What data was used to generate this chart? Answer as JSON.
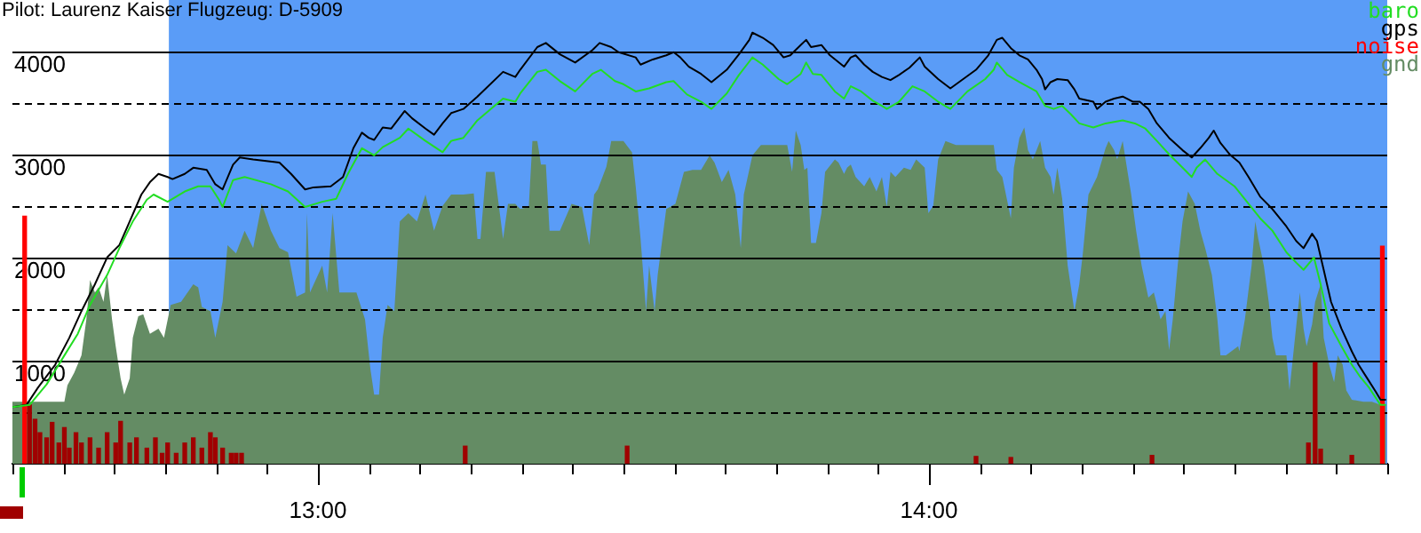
{
  "chart_data": {
    "type": "line",
    "title": "Pilot: Laurenz Kaiser Flugzeug: D-5909",
    "xlim": [
      12.5,
      14.75
    ],
    "xticks": [
      {
        "value": 12.5,
        "label": null
      },
      {
        "value": 12.583,
        "label": null
      },
      {
        "value": 12.667,
        "label": null
      },
      {
        "value": 12.75,
        "label": null
      },
      {
        "value": 12.833,
        "label": null
      },
      {
        "value": 12.917,
        "label": null
      },
      {
        "value": 13,
        "label": "13:00"
      },
      {
        "value": 13.083,
        "label": null
      },
      {
        "value": 13.167,
        "label": null
      },
      {
        "value": 13.25,
        "label": null
      },
      {
        "value": 13.333,
        "label": null
      },
      {
        "value": 13.417,
        "label": null
      },
      {
        "value": 13.5,
        "label": null
      },
      {
        "value": 13.583,
        "label": null
      },
      {
        "value": 13.667,
        "label": null
      },
      {
        "value": 13.75,
        "label": null
      },
      {
        "value": 13.833,
        "label": null
      },
      {
        "value": 13.917,
        "label": null
      },
      {
        "value": 14,
        "label": "14:00"
      },
      {
        "value": 14.083,
        "label": null
      },
      {
        "value": 14.167,
        "label": null
      },
      {
        "value": 14.25,
        "label": null
      },
      {
        "value": 14.333,
        "label": null
      },
      {
        "value": 14.417,
        "label": null
      },
      {
        "value": 14.5,
        "label": null
      },
      {
        "value": 14.583,
        "label": null
      },
      {
        "value": 14.667,
        "label": null
      },
      {
        "value": 14.75,
        "label": null
      }
    ],
    "ylim": [
      0,
      4500
    ],
    "yticks": [
      {
        "value": 500,
        "label": null
      },
      1000,
      {
        "value": 1500,
        "label": null
      },
      2000,
      {
        "value": 2500,
        "label": null
      },
      3000,
      {
        "value": 3500,
        "label": null
      },
      4000
    ],
    "grid": "y",
    "legend": "top right",
    "marker": "none",
    "bands": [
      {
        "axis": "x",
        "from": 12.756,
        "to": 14.75,
        "color": "#5a9cf7"
      }
    ],
    "series": [
      {
        "name": "baro",
        "color": "#22dd22",
        "x": [
          12.5,
          12.528,
          12.556,
          12.585,
          12.607,
          12.627,
          12.655,
          12.675,
          12.697,
          12.72,
          12.731,
          12.754,
          12.782,
          12.804,
          12.824,
          12.838,
          12.844,
          12.861,
          12.88,
          12.923,
          12.951,
          12.979,
          13.007,
          13.03,
          13.049,
          13.072,
          13.092,
          13.106,
          13.134,
          13.148,
          13.176,
          13.204,
          13.218,
          13.238,
          13.261,
          13.303,
          13.323,
          13.331,
          13.359,
          13.373,
          13.396,
          13.421,
          13.449,
          13.463,
          13.486,
          13.5,
          13.52,
          13.542,
          13.57,
          13.582,
          13.604,
          13.627,
          13.644,
          13.669,
          13.689,
          13.706,
          13.711,
          13.728,
          13.754,
          13.768,
          13.79,
          13.799,
          13.81,
          13.824,
          13.846,
          13.861,
          13.872,
          13.889,
          13.908,
          13.923,
          13.931,
          13.951,
          13.973,
          13.993,
          14.015,
          14.035,
          14.063,
          14.092,
          14.106,
          14.111,
          14.128,
          14.148,
          14.176,
          14.19,
          14.204,
          14.218,
          14.232,
          14.246,
          14.269,
          14.289,
          14.317,
          14.337,
          14.354,
          14.373,
          14.393,
          14.415,
          14.43,
          14.438,
          14.452,
          14.472,
          14.5,
          14.523,
          14.542,
          14.562,
          14.585,
          14.601,
          14.613,
          14.63,
          14.641,
          14.655,
          14.675,
          14.692,
          14.706,
          14.72,
          14.739,
          14.748
        ],
        "values": [
          550,
          570,
          770,
          1050,
          1260,
          1540,
          1830,
          2090,
          2350,
          2560,
          2610,
          2540,
          2640,
          2690,
          2690,
          2560,
          2490,
          2750,
          2780,
          2710,
          2640,
          2490,
          2540,
          2570,
          2810,
          3060,
          2990,
          3070,
          3160,
          3250,
          3130,
          3020,
          3130,
          3160,
          3330,
          3540,
          3510,
          3590,
          3800,
          3820,
          3710,
          3610,
          3780,
          3820,
          3710,
          3680,
          3610,
          3640,
          3700,
          3710,
          3580,
          3510,
          3440,
          3590,
          3770,
          3900,
          3940,
          3870,
          3730,
          3680,
          3780,
          3890,
          3780,
          3770,
          3610,
          3540,
          3660,
          3610,
          3520,
          3470,
          3440,
          3510,
          3660,
          3610,
          3510,
          3440,
          3610,
          3730,
          3820,
          3890,
          3770,
          3700,
          3610,
          3470,
          3440,
          3470,
          3390,
          3300,
          3260,
          3300,
          3330,
          3300,
          3250,
          3130,
          3000,
          2870,
          2780,
          2870,
          2950,
          2810,
          2690,
          2520,
          2380,
          2260,
          2050,
          1950,
          1880,
          2000,
          1740,
          1360,
          1140,
          960,
          840,
          740,
          570,
          570
        ]
      },
      {
        "name": "gps",
        "color": "#000000",
        "x": [
          12.5,
          12.523,
          12.542,
          12.57,
          12.593,
          12.613,
          12.635,
          12.655,
          12.675,
          12.692,
          12.711,
          12.725,
          12.739,
          12.754,
          12.762,
          12.782,
          12.796,
          12.818,
          12.832,
          12.844,
          12.861,
          12.872,
          12.894,
          12.937,
          12.956,
          12.979,
          12.993,
          13.021,
          13.041,
          13.058,
          13.072,
          13.083,
          13.092,
          13.106,
          13.12,
          13.142,
          13.154,
          13.176,
          13.19,
          13.204,
          13.218,
          13.238,
          13.261,
          13.303,
          13.323,
          13.331,
          13.359,
          13.373,
          13.396,
          13.421,
          13.449,
          13.461,
          13.48,
          13.492,
          13.52,
          13.528,
          13.548,
          13.57,
          13.582,
          13.593,
          13.607,
          13.627,
          13.644,
          13.669,
          13.689,
          13.706,
          13.711,
          13.728,
          13.745,
          13.762,
          13.773,
          13.79,
          13.799,
          13.807,
          13.824,
          13.838,
          13.861,
          13.872,
          13.88,
          13.894,
          13.908,
          13.923,
          13.937,
          13.951,
          13.968,
          13.985,
          13.993,
          14.015,
          14.035,
          14.049,
          14.077,
          14.097,
          14.111,
          14.12,
          14.134,
          14.148,
          14.162,
          14.176,
          14.185,
          14.19,
          14.199,
          14.21,
          14.227,
          14.238,
          14.246,
          14.269,
          14.275,
          14.289,
          14.303,
          14.317,
          14.334,
          14.345,
          14.359,
          14.373,
          14.393,
          14.415,
          14.43,
          14.444,
          14.458,
          14.466,
          14.477,
          14.492,
          14.508,
          14.523,
          14.542,
          14.562,
          14.585,
          14.601,
          14.613,
          14.627,
          14.635,
          14.646,
          14.658,
          14.675,
          14.692,
          14.703,
          14.717,
          14.731,
          14.739,
          14.748
        ],
        "values": [
          550,
          570,
          740,
          960,
          1220,
          1480,
          1740,
          2000,
          2120,
          2350,
          2610,
          2730,
          2810,
          2780,
          2760,
          2810,
          2870,
          2850,
          2710,
          2660,
          2900,
          2970,
          2950,
          2920,
          2810,
          2660,
          2680,
          2690,
          2780,
          3060,
          3210,
          3160,
          3140,
          3260,
          3250,
          3420,
          3350,
          3250,
          3190,
          3300,
          3400,
          3440,
          3560,
          3800,
          3750,
          3820,
          4040,
          4080,
          3970,
          3890,
          4010,
          4080,
          4040,
          3990,
          3940,
          3870,
          3920,
          3960,
          3990,
          3940,
          3850,
          3780,
          3700,
          3820,
          3970,
          4110,
          4180,
          4130,
          4060,
          3940,
          3960,
          4060,
          4110,
          4040,
          4060,
          3960,
          3850,
          3940,
          3960,
          3870,
          3800,
          3750,
          3720,
          3770,
          3840,
          3940,
          3850,
          3730,
          3640,
          3700,
          3820,
          3960,
          4110,
          4130,
          4030,
          3960,
          3920,
          3820,
          3730,
          3630,
          3700,
          3730,
          3720,
          3630,
          3540,
          3510,
          3440,
          3510,
          3540,
          3560,
          3510,
          3510,
          3440,
          3300,
          3160,
          3040,
          2970,
          3060,
          3160,
          3230,
          3110,
          3000,
          2920,
          2780,
          2590,
          2470,
          2300,
          2160,
          2090,
          2230,
          2160,
          1880,
          1570,
          1310,
          1090,
          960,
          830,
          700,
          620,
          620
        ]
      },
      {
        "name": "noise",
        "type": "bar",
        "color": "#ff0000",
        "colors": [
          "#ff0000",
          "#a00000",
          "#a00000",
          "#a00000",
          "#a00000",
          "#a00000",
          "#a00000",
          "#a00000",
          "#a00000",
          "#a00000",
          "#a00000",
          "#a00000",
          "#a00000",
          "#a00000",
          "#a00000",
          "#a00000",
          "#a00000",
          "#a00000",
          "#a00000",
          "#a00000",
          "#a00000",
          "#a00000",
          "#a00000",
          "#a00000",
          "#a00000",
          "#a00000",
          "#a00000",
          "#a00000",
          "#a00000",
          "#a00000",
          "#a00000",
          "#a00000",
          "#a00000",
          "#a00000",
          "#a00000",
          "#a00000",
          "#a00000",
          "#a00000",
          "#a00000",
          "#a00000",
          "#a00000",
          "#ff0000"
        ],
        "x": [
          12.52,
          12.528,
          12.537,
          12.545,
          12.556,
          12.565,
          12.576,
          12.585,
          12.593,
          12.604,
          12.613,
          12.627,
          12.641,
          12.655,
          12.669,
          12.677,
          12.692,
          12.703,
          12.72,
          12.734,
          12.745,
          12.754,
          12.768,
          12.782,
          12.796,
          12.81,
          12.824,
          12.832,
          12.844,
          12.858,
          12.866,
          12.875,
          13.241,
          13.506,
          14.077,
          14.134,
          14.365,
          14.621,
          14.632,
          14.641,
          14.692,
          14.742
        ],
        "values": [
          2400,
          570,
          430,
          300,
          250,
          400,
          200,
          350,
          150,
          300,
          200,
          250,
          150,
          300,
          200,
          410,
          200,
          250,
          150,
          250,
          100,
          200,
          100,
          200,
          250,
          150,
          300,
          250,
          150,
          100,
          100,
          100,
          170,
          170,
          70,
          60,
          80,
          200,
          980,
          140,
          80,
          2110
        ]
      },
      {
        "name": "gnd",
        "type": "area",
        "color": "#648c64",
        "x": [
          12.5,
          12.585,
          12.59,
          12.601,
          12.613,
          12.621,
          12.627,
          12.635,
          12.641,
          12.649,
          12.655,
          12.663,
          12.669,
          12.677,
          12.683,
          12.692,
          12.697,
          12.706,
          12.714,
          12.725,
          12.739,
          12.748,
          12.759,
          12.776,
          12.796,
          12.804,
          12.81,
          12.824,
          12.832,
          12.844,
          12.852,
          12.866,
          12.88,
          12.894,
          12.908,
          12.923,
          12.937,
          12.951,
          12.965,
          12.979,
          12.982,
          12.987,
          13.007,
          13.015,
          13.024,
          13.035,
          13.049,
          13.063,
          13.077,
          13.086,
          13.092,
          13.1,
          13.106,
          13.114,
          13.125,
          13.134,
          13.148,
          13.162,
          13.176,
          13.19,
          13.204,
          13.218,
          13.238,
          13.255,
          13.261,
          13.266,
          13.275,
          13.289,
          13.303,
          13.311,
          13.323,
          13.331,
          13.345,
          13.351,
          13.359,
          13.365,
          13.373,
          13.379,
          13.396,
          13.415,
          13.432,
          13.444,
          13.452,
          13.458,
          13.472,
          13.48,
          13.5,
          13.514,
          13.52,
          13.528,
          13.537,
          13.542,
          13.551,
          13.556,
          13.57,
          13.585,
          13.599,
          13.613,
          13.627,
          13.641,
          13.649,
          13.661,
          13.672,
          13.683,
          13.692,
          13.697,
          13.711,
          13.725,
          13.739,
          13.754,
          13.768,
          13.776,
          13.782,
          13.79,
          13.796,
          13.801,
          13.807,
          13.815,
          13.824,
          13.83,
          13.846,
          13.852,
          13.861,
          13.866,
          13.872,
          13.88,
          13.894,
          13.903,
          13.914,
          13.923,
          13.931,
          13.937,
          13.945,
          13.959,
          13.97,
          13.979,
          13.993,
          13.999,
          14.007,
          14.015,
          14.027,
          14.044,
          14.063,
          14.077,
          14.106,
          14.111,
          14.12,
          14.134,
          14.139,
          14.148,
          14.156,
          14.162,
          14.17,
          14.182,
          14.19,
          14.199,
          14.204,
          14.21,
          14.218,
          14.227,
          14.238,
          14.246,
          14.252,
          14.261,
          14.275,
          14.289,
          14.294,
          14.303,
          14.308,
          14.317,
          14.325,
          14.331,
          14.339,
          14.348,
          14.359,
          14.368,
          14.379,
          14.387,
          14.393,
          14.399,
          14.407,
          14.415,
          14.424,
          14.435,
          14.444,
          14.452,
          14.463,
          14.472,
          14.477,
          14.486,
          14.506,
          14.508,
          14.517,
          14.528,
          14.534,
          14.539,
          14.548,
          14.556,
          14.562,
          14.568,
          14.576,
          14.585,
          14.59,
          14.599,
          14.607,
          14.613,
          14.618,
          14.627,
          14.632,
          14.641,
          14.646,
          14.655,
          14.663,
          14.669,
          14.677,
          14.683,
          14.692,
          14.711,
          14.725,
          14.739,
          14.748
        ],
        "values": [
          600,
          600,
          760,
          880,
          1050,
          1400,
          1780,
          1660,
          1710,
          1570,
          1830,
          1400,
          1140,
          830,
          670,
          830,
          1220,
          1430,
          1450,
          1260,
          1310,
          1220,
          1540,
          1570,
          1740,
          1710,
          1520,
          1480,
          1220,
          1570,
          2120,
          2040,
          2260,
          2090,
          2520,
          2260,
          2090,
          2050,
          1620,
          1660,
          2430,
          1660,
          1920,
          1660,
          2430,
          1660,
          1660,
          1660,
          1400,
          910,
          670,
          670,
          1220,
          1540,
          1480,
          2350,
          2430,
          2350,
          2610,
          2260,
          2500,
          2610,
          2610,
          2620,
          2180,
          2180,
          2830,
          2830,
          2180,
          2520,
          2520,
          2470,
          2490,
          3130,
          3130,
          2900,
          2900,
          2260,
          2260,
          2520,
          2490,
          2120,
          2610,
          2660,
          2880,
          3130,
          3130,
          3020,
          2690,
          2180,
          1480,
          1920,
          1480,
          1830,
          2470,
          2520,
          2830,
          2850,
          2850,
          2990,
          2920,
          2730,
          2850,
          2610,
          2090,
          2610,
          2990,
          3090,
          3090,
          3090,
          3090,
          2830,
          3230,
          3090,
          2850,
          2870,
          2140,
          2140,
          2430,
          2830,
          2950,
          2920,
          2810,
          2870,
          2900,
          2780,
          2690,
          2780,
          2640,
          2780,
          2490,
          2830,
          2780,
          2870,
          2850,
          2950,
          2870,
          2430,
          2500,
          2950,
          3130,
          3090,
          3090,
          3090,
          3090,
          2850,
          2780,
          2380,
          2870,
          3160,
          3260,
          3040,
          2950,
          3130,
          2870,
          2780,
          2610,
          2870,
          2570,
          1920,
          1480,
          1740,
          2050,
          2610,
          2780,
          3060,
          3130,
          3040,
          2950,
          3130,
          2830,
          2610,
          2260,
          1920,
          1610,
          1660,
          1400,
          1480,
          1100,
          1400,
          1920,
          2350,
          2640,
          2520,
          2260,
          2090,
          1830,
          1400,
          1050,
          1050,
          1140,
          1090,
          1400,
          1920,
          2350,
          2180,
          1920,
          1570,
          1220,
          1050,
          1050,
          1050,
          710,
          1220,
          1660,
          1310,
          1140,
          1350,
          1570,
          1740,
          1220,
          960,
          790,
          1050,
          960,
          710,
          620,
          600,
          600,
          570,
          570
        ]
      }
    ]
  }
}
